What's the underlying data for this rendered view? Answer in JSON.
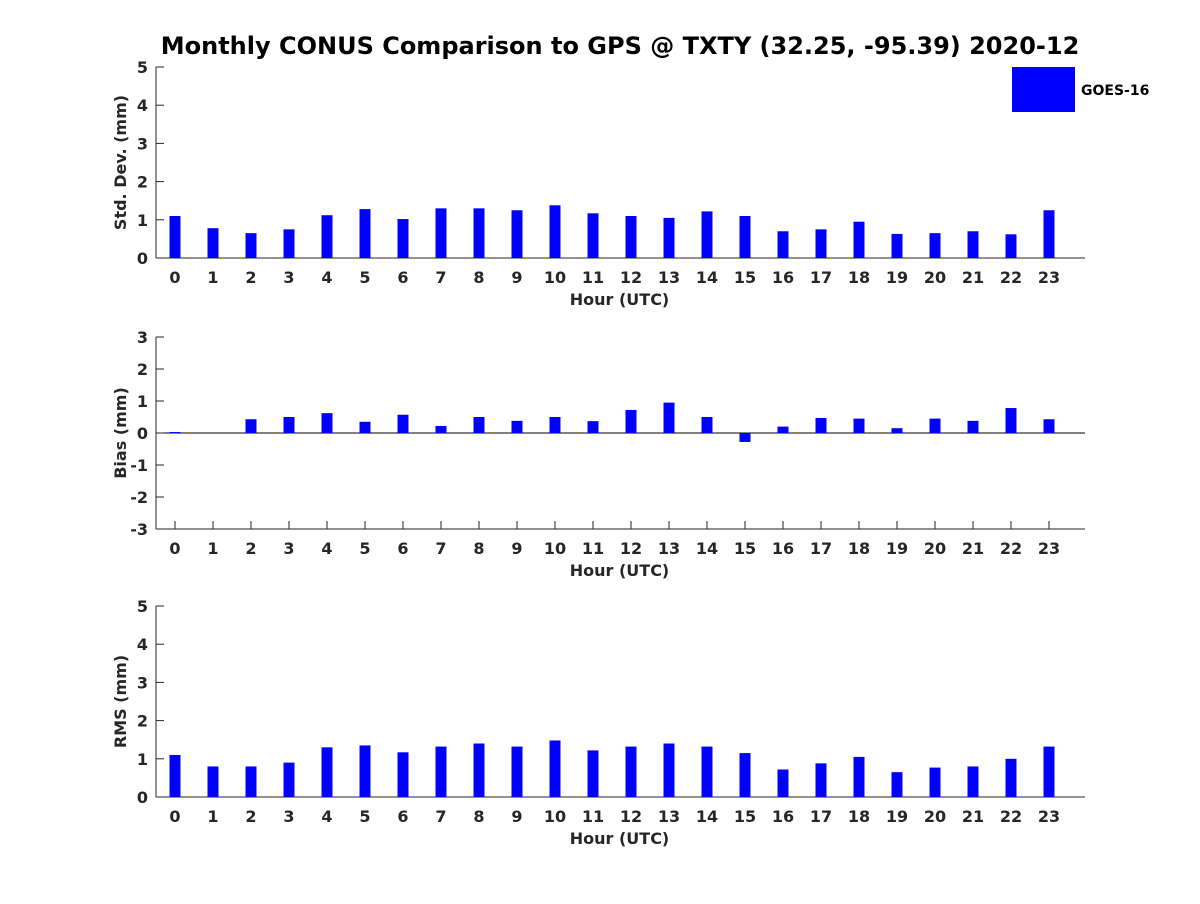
{
  "figure": {
    "title": "Monthly CONUS Comparison to GPS @ TXTY (32.25, -95.39) 2020-12",
    "legend": {
      "label": "GOES-16",
      "color": "#0000ff"
    },
    "bar_color": "#0000ff"
  },
  "chart_data": [
    {
      "type": "bar",
      "name": "std-dev",
      "title": "",
      "xlabel": "Hour (UTC)",
      "ylabel": "Std. Dev. (mm)",
      "categories": [
        "0",
        "1",
        "2",
        "3",
        "4",
        "5",
        "6",
        "7",
        "8",
        "9",
        "10",
        "11",
        "12",
        "13",
        "14",
        "15",
        "16",
        "17",
        "18",
        "19",
        "20",
        "21",
        "22",
        "23"
      ],
      "series": [
        {
          "name": "GOES-16",
          "values": [
            1.1,
            0.78,
            0.65,
            0.75,
            1.12,
            1.28,
            1.02,
            1.3,
            1.3,
            1.25,
            1.38,
            1.17,
            1.1,
            1.05,
            1.22,
            1.1,
            0.7,
            0.75,
            0.95,
            0.63,
            0.65,
            0.7,
            0.62,
            1.25
          ]
        }
      ],
      "ylim": [
        0,
        5
      ],
      "yticks": [
        "0",
        "1",
        "2",
        "3",
        "4",
        "5"
      ],
      "legend": "top-right"
    },
    {
      "type": "bar",
      "name": "bias",
      "title": "",
      "xlabel": "Hour (UTC)",
      "ylabel": "Bias (mm)",
      "categories": [
        "0",
        "1",
        "2",
        "3",
        "4",
        "5",
        "6",
        "7",
        "8",
        "9",
        "10",
        "11",
        "12",
        "13",
        "14",
        "15",
        "16",
        "17",
        "18",
        "19",
        "20",
        "21",
        "22",
        "23"
      ],
      "series": [
        {
          "name": "GOES-16",
          "values": [
            0.03,
            0.0,
            0.43,
            0.5,
            0.62,
            0.35,
            0.57,
            0.22,
            0.5,
            0.38,
            0.5,
            0.37,
            0.72,
            0.95,
            0.5,
            -0.28,
            0.2,
            0.47,
            0.45,
            0.15,
            0.45,
            0.38,
            0.78,
            0.43
          ]
        }
      ],
      "ylim": [
        -3,
        3
      ],
      "yticks": [
        "-3",
        "-2",
        "-1",
        "0",
        "1",
        "2",
        "3"
      ],
      "zero_line": true
    },
    {
      "type": "bar",
      "name": "rms",
      "title": "",
      "xlabel": "Hour (UTC)",
      "ylabel": "RMS (mm)",
      "categories": [
        "0",
        "1",
        "2",
        "3",
        "4",
        "5",
        "6",
        "7",
        "8",
        "9",
        "10",
        "11",
        "12",
        "13",
        "14",
        "15",
        "16",
        "17",
        "18",
        "19",
        "20",
        "21",
        "22",
        "23"
      ],
      "series": [
        {
          "name": "GOES-16",
          "values": [
            1.1,
            0.8,
            0.8,
            0.9,
            1.3,
            1.35,
            1.17,
            1.32,
            1.4,
            1.32,
            1.48,
            1.22,
            1.32,
            1.4,
            1.32,
            1.15,
            0.72,
            0.88,
            1.05,
            0.65,
            0.77,
            0.8,
            1.0,
            1.32
          ]
        }
      ],
      "ylim": [
        0,
        5
      ],
      "yticks": [
        "0",
        "1",
        "2",
        "3",
        "4",
        "5"
      ]
    }
  ]
}
